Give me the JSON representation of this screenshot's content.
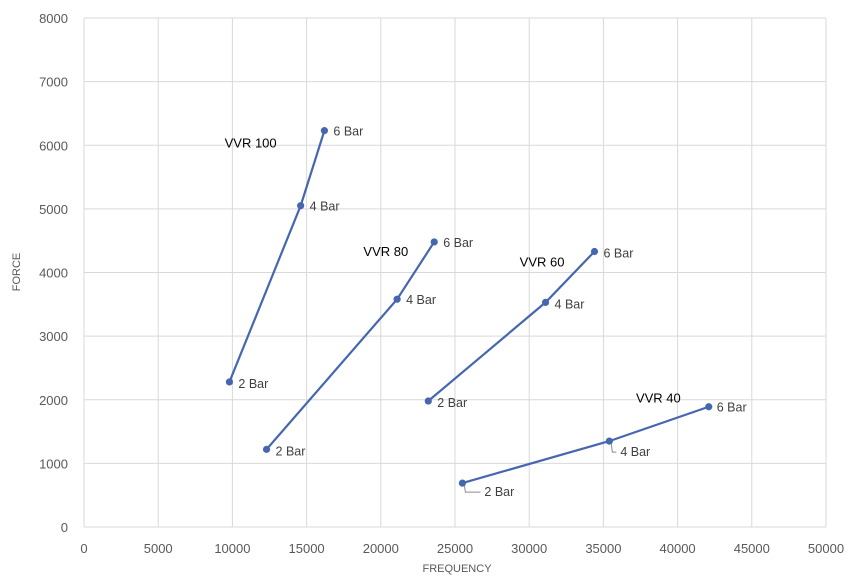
{
  "chart_data": {
    "type": "line",
    "xlabel": "FREQUENCY",
    "ylabel": "FORCE",
    "xlim": [
      0,
      50000
    ],
    "ylim": [
      0,
      8000
    ],
    "xticks": [
      0,
      5000,
      10000,
      15000,
      20000,
      25000,
      30000,
      35000,
      40000,
      45000,
      50000
    ],
    "yticks": [
      0,
      1000,
      2000,
      3000,
      4000,
      5000,
      6000,
      7000,
      8000
    ],
    "grid": true,
    "series": [
      {
        "name": "VVR 100",
        "points": [
          {
            "x": 9800,
            "y": 2280,
            "label": "2 Bar"
          },
          {
            "x": 14600,
            "y": 5050,
            "label": "4 Bar"
          },
          {
            "x": 16200,
            "y": 6230,
            "label": "6 Bar"
          }
        ]
      },
      {
        "name": "VVR 80",
        "points": [
          {
            "x": 12300,
            "y": 1220,
            "label": "2 Bar"
          },
          {
            "x": 21100,
            "y": 3580,
            "label": "4 Bar"
          },
          {
            "x": 23600,
            "y": 4480,
            "label": "6 Bar"
          }
        ]
      },
      {
        "name": "VVR 60",
        "points": [
          {
            "x": 23200,
            "y": 1980,
            "label": "2 Bar"
          },
          {
            "x": 31100,
            "y": 3530,
            "label": "4 Bar"
          },
          {
            "x": 34400,
            "y": 4330,
            "label": "6 Bar"
          }
        ]
      },
      {
        "name": "VVR 40",
        "points": [
          {
            "x": 25500,
            "y": 690,
            "label": "2 Bar"
          },
          {
            "x": 35400,
            "y": 1350,
            "label": "4 Bar"
          },
          {
            "x": 42100,
            "y": 1890,
            "label": "6 Bar"
          }
        ]
      }
    ]
  }
}
